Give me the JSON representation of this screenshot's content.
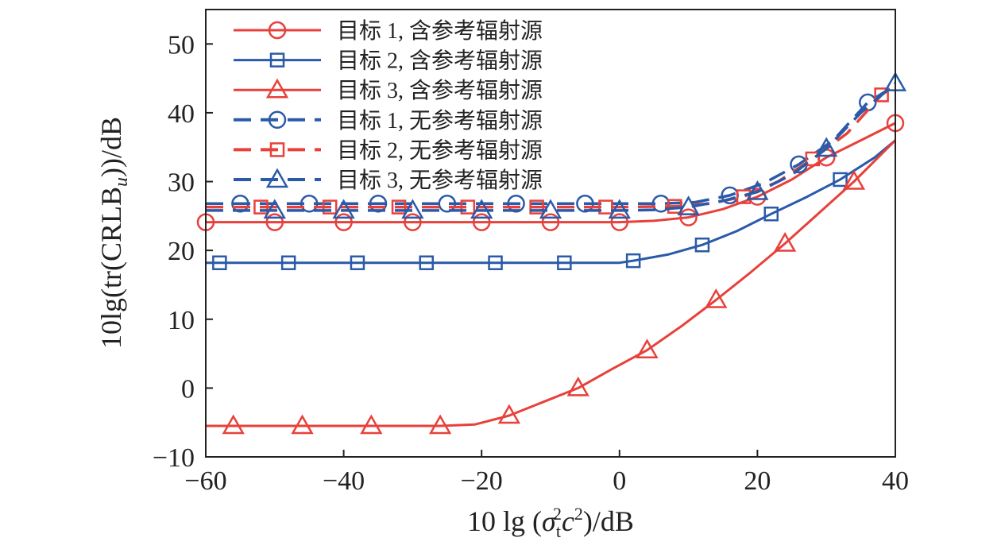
{
  "chart_data": {
    "type": "line",
    "xlabel": {
      "prefix": "10 lg (",
      "sigma": "σ",
      "sub": "t",
      "sup1": "2",
      "c": "c",
      "sup2": "2",
      "suffix": ")/dB"
    },
    "ylabel": {
      "prefix": "10lg(tr(CRLB",
      "sub": "u",
      "suffix": "))/dB"
    },
    "xlim": [
      -60,
      40
    ],
    "ylim": [
      -10,
      55
    ],
    "xticks": [
      -60,
      -40,
      -20,
      0,
      20,
      40
    ],
    "xtick_labels": [
      "−60",
      "−40",
      "−20",
      "0",
      "20",
      "40"
    ],
    "yticks": [
      -10,
      0,
      10,
      20,
      30,
      40,
      50
    ],
    "ytick_labels": [
      "−10",
      "0",
      "10",
      "20",
      "30",
      "40",
      "50"
    ],
    "grid": false,
    "legend_position": "top-left",
    "colors": {
      "red": "#e8403a",
      "blue": "#2a5aa8"
    },
    "series": [
      {
        "name": "目标 1, 含参考辐射源",
        "color": "#e8403a",
        "dash": "solid",
        "marker": "circle",
        "x": [
          -60,
          -50,
          -40,
          -30,
          -20,
          -10,
          0,
          5,
          10,
          15,
          20,
          25,
          30,
          35,
          40
        ],
        "y": [
          24.1,
          24.1,
          24.1,
          24.1,
          24.1,
          24.1,
          24.1,
          24.3,
          24.8,
          26.0,
          27.8,
          30.3,
          33.5,
          36.0,
          38.5
        ],
        "marker_x": [
          -60,
          -50,
          -40,
          -30,
          -20,
          -10,
          0,
          10,
          20,
          30,
          40
        ]
      },
      {
        "name": "目标 2, 含参考辐射源",
        "color": "#2a5aa8",
        "dash": "solid",
        "marker": "square",
        "x": [
          -60,
          -50,
          -40,
          -30,
          -20,
          -10,
          0,
          2,
          7,
          12,
          17,
          22,
          27,
          32,
          37,
          40
        ],
        "y": [
          18.2,
          18.2,
          18.2,
          18.2,
          18.2,
          18.2,
          18.2,
          18.5,
          19.4,
          20.8,
          22.8,
          25.3,
          27.7,
          30.3,
          33.5,
          36.0
        ],
        "marker_x": [
          -58,
          -48,
          -38,
          -28,
          -18,
          -8,
          2,
          12,
          22,
          32
        ]
      },
      {
        "name": "目标 3, 含参考辐射源",
        "color": "#e8403a",
        "dash": "solid",
        "marker": "triangle",
        "x": [
          -60,
          -50,
          -40,
          -30,
          -26,
          -21,
          -16,
          -11,
          -6,
          -1,
          4,
          9,
          14,
          19,
          24,
          29,
          34,
          40
        ],
        "y": [
          -5.5,
          -5.5,
          -5.5,
          -5.5,
          -5.5,
          -5.3,
          -4.0,
          -2.0,
          0.0,
          2.8,
          5.5,
          9.0,
          12.8,
          16.8,
          21.0,
          25.5,
          30.0,
          36.0
        ],
        "marker_x": [
          -56,
          -46,
          -36,
          -26,
          -16,
          -6,
          4,
          14,
          24,
          34
        ]
      },
      {
        "name": "目标 1, 无参考辐射源",
        "color": "#2a5aa8",
        "dash": "dashed",
        "marker": "circle",
        "x": [
          -60,
          -50,
          -40,
          -30,
          -20,
          -10,
          0,
          6,
          11,
          16,
          21,
          26,
          31,
          36,
          40
        ],
        "y": [
          26.8,
          26.8,
          26.8,
          26.8,
          26.8,
          26.8,
          26.8,
          26.8,
          27.0,
          28.0,
          29.8,
          32.5,
          36.0,
          41.5,
          44.0
        ],
        "marker_x": [
          -55,
          -45,
          -35,
          -25,
          -15,
          -5,
          6,
          16,
          26,
          36
        ]
      },
      {
        "name": "目标 2, 无参考辐射源",
        "color": "#e8403a",
        "dash": "dashed",
        "marker": "square",
        "x": [
          -60,
          -50,
          -40,
          -30,
          -20,
          -10,
          0,
          8,
          13,
          18,
          23,
          28,
          33,
          38,
          40
        ],
        "y": [
          26.3,
          26.3,
          26.3,
          26.3,
          26.3,
          26.3,
          26.3,
          26.4,
          26.8,
          27.8,
          30.0,
          33.3,
          37.0,
          42.6,
          44.0
        ],
        "marker_x": [
          -52,
          -42,
          -32,
          -22,
          -12,
          -2,
          8,
          18,
          28,
          38
        ]
      },
      {
        "name": "目标 3, 无参考辐射源",
        "color": "#2a5aa8",
        "dash": "dashed",
        "marker": "triangle",
        "x": [
          -60,
          -50,
          -40,
          -30,
          -20,
          -10,
          0,
          5,
          10,
          15,
          20,
          25,
          30,
          35,
          40
        ],
        "y": [
          25.8,
          25.8,
          25.8,
          25.8,
          25.8,
          25.8,
          25.8,
          25.9,
          26.3,
          27.2,
          28.5,
          31.0,
          34.8,
          40.0,
          44.3
        ],
        "marker_x": [
          -50,
          -40,
          -30,
          -20,
          -10,
          0,
          10,
          20,
          30,
          40
        ]
      }
    ]
  }
}
